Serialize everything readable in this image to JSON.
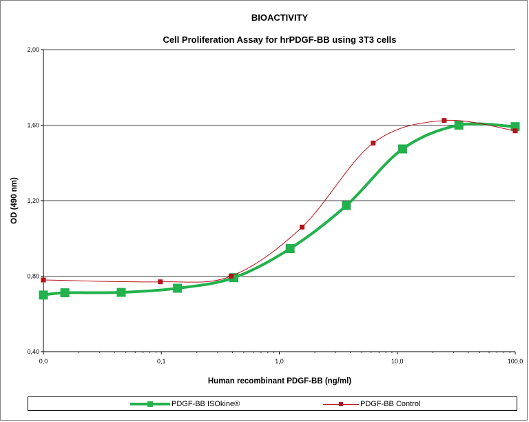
{
  "chart_data": {
    "type": "line",
    "title": "BIOACTIVITY",
    "subtitle": "Cell Proliferation Assay for hrPDGF-BB using 3T3 cells",
    "xlabel": "Human recombinant PDGF-BB (ng/ml)",
    "ylabel": "OD (490 nm)",
    "x_scale": "log",
    "xlim": [
      0.01,
      100
    ],
    "ylim": [
      0.4,
      2.0
    ],
    "x_ticks": [
      {
        "value": 0.01,
        "label": "0,0"
      },
      {
        "value": 0.1,
        "label": "0,1"
      },
      {
        "value": 1,
        "label": "1,0"
      },
      {
        "value": 10,
        "label": "10,0"
      },
      {
        "value": 100,
        "label": "100,0"
      }
    ],
    "y_ticks": [
      {
        "value": 0.4,
        "label": "0,40"
      },
      {
        "value": 0.8,
        "label": "0,80"
      },
      {
        "value": 1.2,
        "label": "1,20"
      },
      {
        "value": 1.6,
        "label": "1,60"
      },
      {
        "value": 2.0,
        "label": "2,00"
      }
    ],
    "grid": "horizontal",
    "legend_position": "bottom",
    "series": [
      {
        "name": "PDGF-BB ISOkine®",
        "color": "#22b14c",
        "marker": "square",
        "x": [
          0.01,
          0.0152,
          0.0457,
          0.137,
          0.412,
          1.235,
          3.7,
          11.1,
          33.3,
          100
        ],
        "y": [
          0.7,
          0.712,
          0.714,
          0.736,
          0.792,
          0.946,
          1.174,
          1.474,
          1.6,
          1.592
        ]
      },
      {
        "name": "PDGF-BB Control",
        "color": "#b5121b",
        "marker": "square",
        "x": [
          0.01,
          0.098,
          0.39,
          1.56,
          6.25,
          25,
          100
        ],
        "y": [
          0.78,
          0.77,
          0.8,
          1.06,
          1.505,
          1.625,
          1.57
        ]
      }
    ]
  }
}
